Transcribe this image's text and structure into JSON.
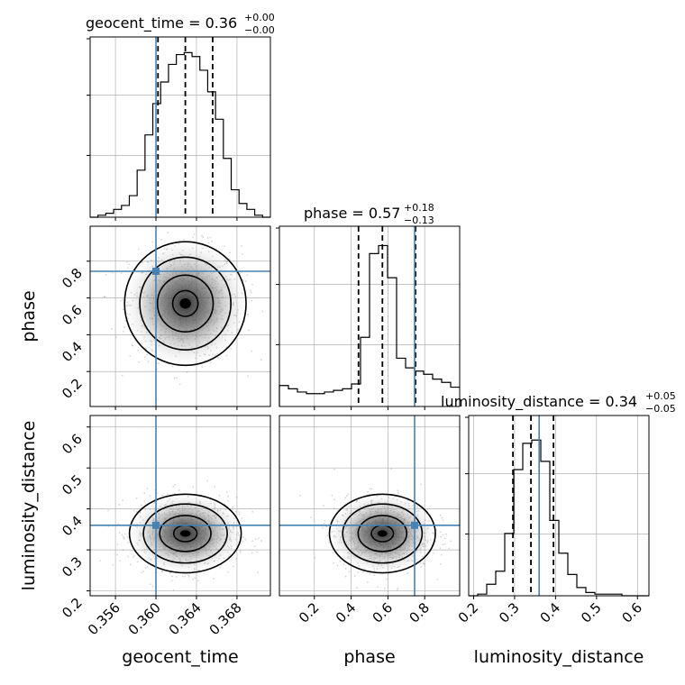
{
  "chart_data": {
    "type": "corner",
    "parameters": [
      "geocent_time",
      "phase",
      "luminosity_distance"
    ],
    "titles": {
      "geocent_time": {
        "prefix": "geocent_time = 0.36",
        "plus": "+0.00",
        "minus": "−0.00"
      },
      "phase": {
        "prefix": "phase = 0.57",
        "plus": "+0.18",
        "minus": "−0.13"
      },
      "luminosity_distance": {
        "prefix": "luminosity_distance = 0.34",
        "plus": "+0.05",
        "minus": "−0.05"
      }
    },
    "ranges": {
      "geocent_time": [
        0.3535,
        0.3713
      ],
      "phase": [
        0.01,
        0.99
      ],
      "luminosity_distance": [
        0.188,
        0.628
      ]
    },
    "ticks": {
      "geocent_time": [
        "0.356",
        "0.360",
        "0.364",
        "0.368"
      ],
      "phase": [
        "0.2",
        "0.4",
        "0.6",
        "0.8"
      ],
      "luminosity_distance": [
        "0.2",
        "0.3",
        "0.4",
        "0.5",
        "0.6"
      ]
    },
    "quantiles": {
      "geocent_time": [
        0.3602,
        0.3629,
        0.3656
      ],
      "phase": [
        0.44,
        0.57,
        0.75
      ],
      "luminosity_distance": [
        0.296,
        0.34,
        0.395
      ]
    },
    "truths": {
      "geocent_time": 0.36,
      "phase": 0.745,
      "luminosity_distance": 0.36
    },
    "histograms": {
      "geocent_time": {
        "edges_start": 0.3535,
        "edges_end": 0.3713,
        "counts": [
          0,
          1,
          2,
          4,
          6,
          11,
          24,
          42,
          58,
          69,
          78,
          83,
          84,
          82,
          75,
          64,
          50,
          30,
          14,
          7,
          4,
          1,
          0
        ]
      },
      "phase": {
        "edges_start": 0.01,
        "edges_end": 0.99,
        "counts": [
          13,
          11,
          9,
          8,
          8,
          9,
          10,
          11,
          14,
          43,
          95,
          100,
          80,
          30,
          24,
          22,
          20,
          17,
          15,
          12
        ]
      },
      "luminosity_distance": {
        "edges_start": 0.188,
        "edges_end": 0.628,
        "counts": [
          0,
          1,
          7,
          15,
          38,
          77,
          93,
          95,
          82,
          46,
          26,
          13,
          5,
          2,
          1,
          1,
          1,
          0,
          0,
          0
        ]
      }
    },
    "histogram_ymax": {
      "geocent_time": 92,
      "phase": 112,
      "luminosity_distance": 110
    },
    "axis_labels": {
      "x": [
        "geocent_time",
        "phase",
        "luminosity_distance"
      ],
      "y": [
        "phase",
        "luminosity_distance"
      ]
    },
    "grid": true,
    "truth_color": "#4682b4",
    "line_color": "#000000",
    "grid_color": "#b0b0b0",
    "scatter_color": "#888888"
  }
}
